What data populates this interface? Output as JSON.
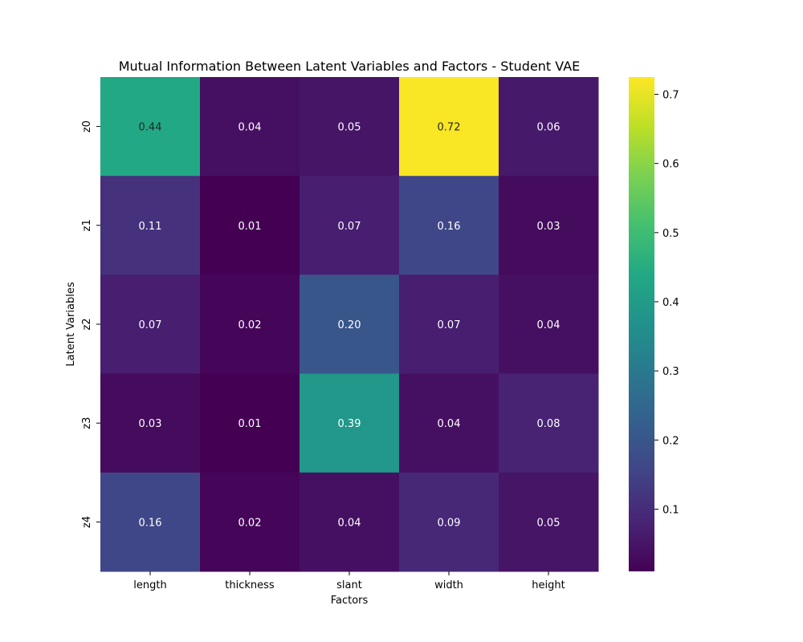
{
  "chart_data": {
    "type": "heatmap",
    "title": "Mutual Information Between Latent Variables and Factors - Student VAE",
    "xlabel": "Factors",
    "ylabel": "Latent Variables",
    "x_categories": [
      "length",
      "thickness",
      "slant",
      "width",
      "height"
    ],
    "y_categories": [
      "z0",
      "z1",
      "z2",
      "z3",
      "z4"
    ],
    "values": [
      [
        0.44,
        0.04,
        0.05,
        0.72,
        0.06
      ],
      [
        0.11,
        0.01,
        0.07,
        0.16,
        0.03
      ],
      [
        0.07,
        0.02,
        0.2,
        0.07,
        0.04
      ],
      [
        0.03,
        0.01,
        0.39,
        0.04,
        0.08
      ],
      [
        0.16,
        0.02,
        0.04,
        0.09,
        0.05
      ]
    ],
    "value_labels": [
      [
        "0.44",
        "0.04",
        "0.05",
        "0.72",
        "0.06"
      ],
      [
        "0.11",
        "0.01",
        "0.07",
        "0.16",
        "0.03"
      ],
      [
        "0.07",
        "0.02",
        "0.20",
        "0.07",
        "0.04"
      ],
      [
        "0.03",
        "0.01",
        "0.39",
        "0.04",
        "0.08"
      ],
      [
        "0.16",
        "0.02",
        "0.04",
        "0.09",
        "0.05"
      ]
    ],
    "colormap": "viridis",
    "colorbar": {
      "range": [
        0.01,
        0.725
      ],
      "ticks": [
        0.1,
        0.2,
        0.3,
        0.4,
        0.5,
        0.6,
        0.7
      ],
      "tick_labels": [
        "0.1",
        "0.2",
        "0.3",
        "0.4",
        "0.5",
        "0.6",
        "0.7"
      ]
    },
    "grid": false,
    "legend": "colorbar-right"
  }
}
